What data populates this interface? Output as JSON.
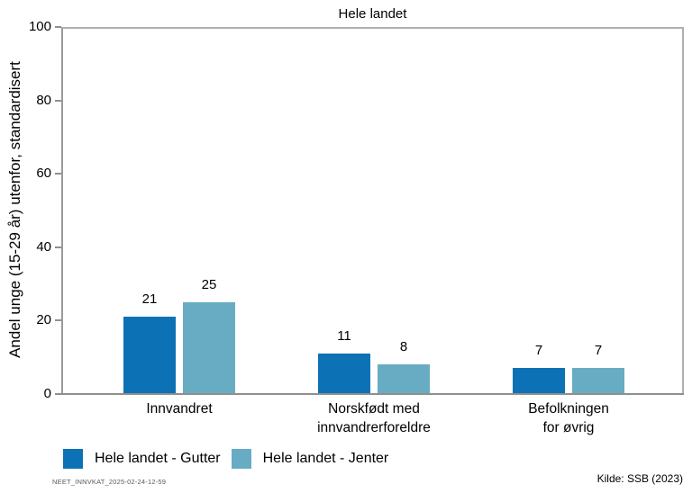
{
  "chart_data": {
    "type": "bar",
    "title": "Hele landet",
    "xlabel": "",
    "ylabel": "Andel unge (15-29 år) utenfor, standardisert",
    "ylim": [
      0,
      100
    ],
    "yticks": [
      0,
      20,
      40,
      60,
      80,
      100
    ],
    "grid": false,
    "legend_position": "bottom-left",
    "bar_labels": true,
    "categories": [
      "Innvandret",
      "Norskfødt med innvandrerforeldre",
      "Befolkningen for øvrig"
    ],
    "category_label_lines": [
      [
        "Innvandret"
      ],
      [
        "Norskfødt med",
        "innvandrerforeldre"
      ],
      [
        "Befolkningen",
        "for øvrig"
      ]
    ],
    "series": [
      {
        "name": "Hele landet - Gutter",
        "color": "#0d72b5",
        "values": [
          21,
          11,
          7
        ]
      },
      {
        "name": "Hele landet - Jenter",
        "color": "#68acc4",
        "values": [
          25,
          8,
          7
        ]
      }
    ]
  },
  "footer": {
    "left_text": "NEET_INNVKAT_2025-02-24-12-59",
    "source": "Kilde: SSB (2023)"
  }
}
